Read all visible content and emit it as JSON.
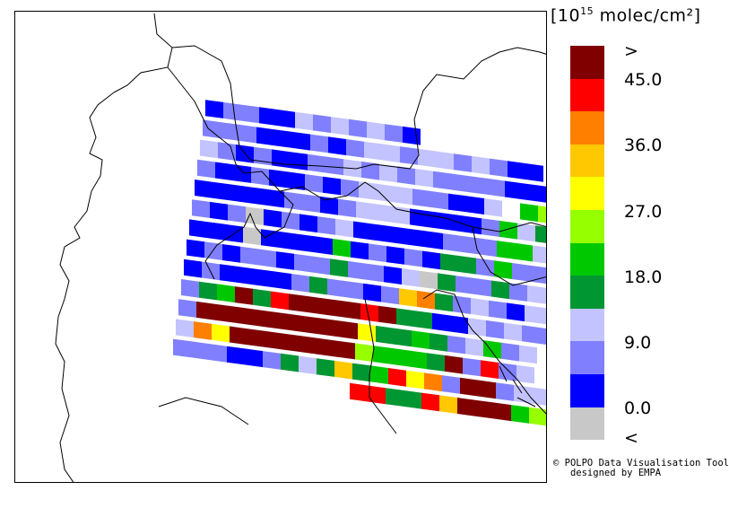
{
  "legend": {
    "unit_pre": "[10",
    "unit_exp": "15",
    "unit_post": " molec/cm²]",
    "colors": [
      "#800000",
      "#ff0000",
      "#ff7f00",
      "#ffc800",
      "#ffff00",
      "#96ff00",
      "#00c800",
      "#009632",
      "#c3c3ff",
      "#8080ff",
      "#0000ff",
      "#c8c8c8"
    ],
    "labels": [
      ">",
      "45.0",
      "36.0",
      "27.0",
      "18.0",
      "9.0",
      "0.0",
      "<"
    ]
  },
  "credit": {
    "line1": "© POLPO Data Visualisation Tool",
    "line2": "   designed by EMPA"
  },
  "grid": {
    "palette": {
      "B": "#0000ff",
      "L": "#8080ff",
      "P": "#c3c3ff",
      "G": "#009632",
      "N": "#00c800",
      "Y": "#96ff00",
      "W": "#ffff00",
      "O": "#ffc800",
      "R": "#ff7f00",
      "X": "#ff0000",
      "M": "#800000",
      "S": "#c8c8c8",
      "_": ""
    },
    "rows": [
      "___________________",
      "BLLBBPLPLPLB_______",
      "LLLBBBLBLPPLPPLPLBB",
      "PLBLBBLLPLPLPLLLLBBB",
      "LBBLBBLBLPPPLLBBP_NY",
      "BBBBBLLBLPPPBBBBLNPG",
      "LBLSBLBLPBBBBBLLLNNPL",
      "BBBSBBBBNBLBLBGGLNLLP",
      "BLBLLBLLGLLBPSGLLGLPPR",
      "BLBBBBLGLLBLORGLPLBPPP",
      "LGNMGXMMMMXMGGBBPLPLL",
      "LMMMMMMMMMWGGNGLPNLP",
      "PRWMMMMMMMYNNNGMLXLP",
      "LLLBBLGPGOGNXWRLMMLPP",
      "__________XXGGXOMMMNY"
    ]
  }
}
